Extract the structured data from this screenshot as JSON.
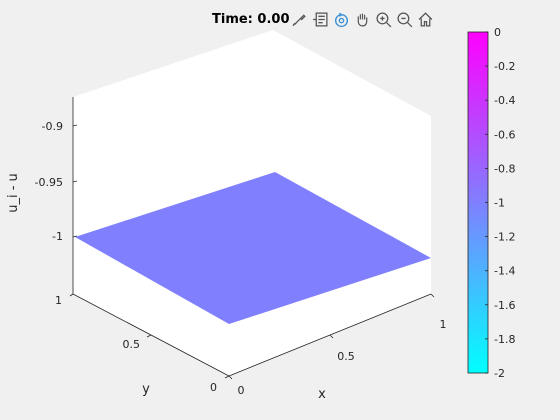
{
  "title": "Time: 0.00 s",
  "colors": {
    "surface": "#8080ff",
    "axis_line": "#262626",
    "colormap_top": "#ff00ff",
    "colormap_bottom": "#00ffff",
    "toolbar_icon": "#555555",
    "toolbar_active": "#3a8fd6"
  },
  "toolbar": [
    {
      "name": "brush-icon"
    },
    {
      "name": "data-tips-icon"
    },
    {
      "name": "rotate-3d-icon",
      "active": true
    },
    {
      "name": "pan-hand-icon"
    },
    {
      "name": "zoom-in-icon"
    },
    {
      "name": "zoom-out-icon"
    },
    {
      "name": "home-icon"
    }
  ],
  "chart_data": {
    "type": "surface",
    "title": "Time: 0.00 s",
    "xlabel": "x",
    "ylabel": "y",
    "zlabel": "u_i - u",
    "x_ticks": [
      "0",
      "0.5",
      "1"
    ],
    "y_ticks": [
      "0",
      "0.5",
      "1"
    ],
    "z_ticks": [
      "-0.9",
      "-0.95",
      "-1"
    ],
    "xlim": [
      0,
      1
    ],
    "ylim": [
      0,
      1
    ],
    "zlim": [
      -1.05,
      -0.88
    ],
    "surface": {
      "x": [
        0,
        1
      ],
      "y": [
        0,
        1
      ],
      "z": [
        [
          -1,
          -1
        ],
        [
          -1,
          -1
        ]
      ]
    },
    "colorbar": {
      "limits": [
        -2,
        0
      ],
      "ticks": [
        "0",
        "-0.2",
        "-0.4",
        "-0.6",
        "-0.8",
        "-1",
        "-1.2",
        "-1.4",
        "-1.6",
        "-1.8",
        "-2"
      ]
    }
  }
}
